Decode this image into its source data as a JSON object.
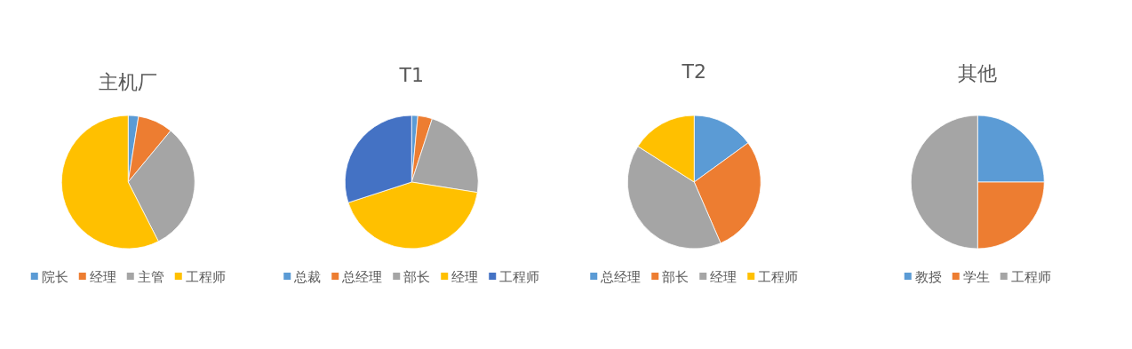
{
  "chart_data": [
    {
      "type": "pie",
      "title": "主机厂",
      "categories": [
        "院长",
        "经理",
        "主管",
        "工程师"
      ],
      "values": [
        2.5,
        8.5,
        31.5,
        57.5
      ],
      "colors": [
        "#5b9bd5",
        "#ed7d31",
        "#a5a5a5",
        "#ffc000"
      ],
      "legend": "bottom"
    },
    {
      "type": "pie",
      "title": "T1",
      "categories": [
        "总裁",
        "总经理",
        "部长",
        "经理",
        "工程师"
      ],
      "values": [
        1.5,
        3.5,
        22.5,
        42.5,
        30
      ],
      "colors": [
        "#5b9bd5",
        "#ed7d31",
        "#a5a5a5",
        "#ffc000",
        "#4472c4"
      ],
      "legend": "bottom"
    },
    {
      "type": "pie",
      "title": "T2",
      "categories": [
        "总经理",
        "部长",
        "经理",
        "工程师"
      ],
      "values": [
        15,
        28.5,
        40.5,
        16
      ],
      "colors": [
        "#5b9bd5",
        "#ed7d31",
        "#a5a5a5",
        "#ffc000"
      ],
      "legend": "bottom"
    },
    {
      "type": "pie",
      "title": "其他",
      "categories": [
        "教授",
        "学生",
        "工程师"
      ],
      "values": [
        25,
        25,
        50
      ],
      "colors": [
        "#5b9bd5",
        "#ed7d31",
        "#a5a5a5"
      ],
      "legend": "bottom"
    }
  ]
}
